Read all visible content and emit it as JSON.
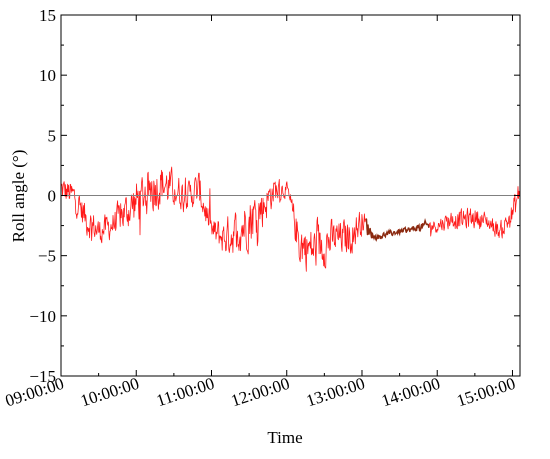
{
  "chart_data": {
    "type": "line",
    "title": "",
    "xlabel": "Time",
    "ylabel": "Roll angle (°)",
    "ylim": [
      -15,
      15
    ],
    "y_ticks": [
      -15,
      -10,
      -5,
      0,
      5,
      10,
      15
    ],
    "x_range_hours": [
      9.0,
      15.1
    ],
    "x_ticks": [
      {
        "label": "09:00:00",
        "hour": 9
      },
      {
        "label": "10:00:00",
        "hour": 10
      },
      {
        "label": "11:00:00",
        "hour": 11
      },
      {
        "label": "12:00:00",
        "hour": 12
      },
      {
        "label": "13:00:00",
        "hour": 13
      },
      {
        "label": "14:00:00",
        "hour": 14
      },
      {
        "label": "15:00:00",
        "hour": 15
      }
    ],
    "reference_line": 0,
    "grid": false,
    "colors": {
      "series": "#ff1a1a",
      "series_dark": "#8a2a10",
      "reference": "#808080",
      "axes": "#000000"
    },
    "series": [
      {
        "x": [
          "09:00:00",
          "09:10:00",
          "09:20:00",
          "09:30:00",
          "09:40:00",
          "09:50:00",
          "10:00:00",
          "10:10:00",
          "10:20:00",
          "10:30:00",
          "10:40:00",
          "10:50:00",
          "11:00:00",
          "11:10:00",
          "11:20:00",
          "11:30:00",
          "11:40:00",
          "11:50:00",
          "12:00:00",
          "12:10:00",
          "12:20:00",
          "12:30:00",
          "12:40:00",
          "12:50:00",
          "13:00:00",
          "13:10:00",
          "13:20:00",
          "13:30:00",
          "13:40:00",
          "13:50:00",
          "14:00:00",
          "14:10:00",
          "14:20:00",
          "14:30:00",
          "14:40:00",
          "14:50:00",
          "15:00:00",
          "15:06:00"
        ],
        "y": [
          0.5,
          0,
          -2,
          -3,
          -2.5,
          -1.5,
          -0.5,
          0.5,
          1,
          0.5,
          0,
          0.5,
          -3,
          -3.5,
          -3,
          -2,
          -1,
          0.5,
          0.5,
          -4,
          -4.5,
          -4,
          -3.5,
          -3.5,
          -2,
          -3.5,
          -3.2,
          -3,
          -2.8,
          -2.5,
          -2.5,
          -2,
          -2,
          -1.8,
          -2.2,
          -3,
          -1.5,
          0.5
        ],
        "spread": [
          1.5,
          1.5,
          1.8,
          1.5,
          1.5,
          2,
          2.5,
          2.8,
          2.5,
          2,
          1.5,
          2,
          1.5,
          2,
          2.5,
          3,
          2.5,
          1.5,
          0.8,
          2.5,
          2.5,
          2.5,
          2,
          2,
          1.5,
          0.3,
          0.3,
          0.3,
          0.3,
          0.5,
          0.8,
          1,
          1.2,
          1.2,
          1,
          1,
          1.5,
          1.5
        ]
      }
    ]
  }
}
